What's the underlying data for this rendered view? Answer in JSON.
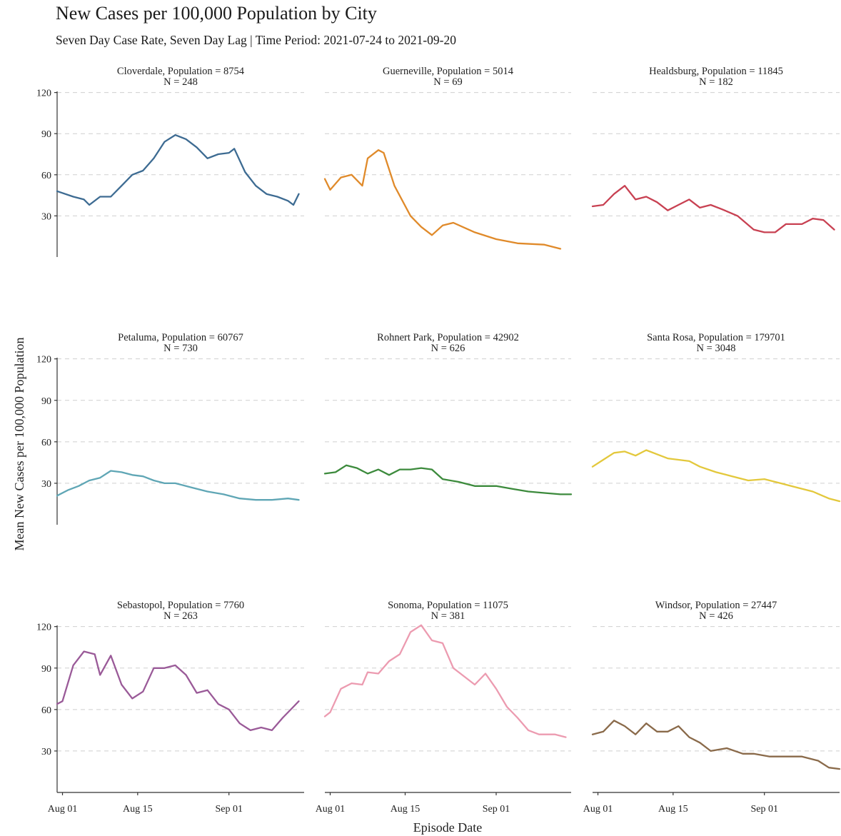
{
  "chart_data": {
    "type": "line",
    "title": "New Cases per 100,000 Population by City",
    "subtitle": "Seven Day Case Rate, Seven Day Lag | Time Period: 2021-07-24 to 2021-09-20",
    "xlabel": "Episode Date",
    "ylabel": "Mean New Cases per 100,000 Population",
    "xlim": [
      "2021-07-31",
      "2021-09-15"
    ],
    "ylim": [
      0,
      125
    ],
    "yticks": [
      30,
      60,
      90,
      120
    ],
    "xticks": [
      {
        "date": "2021-08-01",
        "label": "Aug 01"
      },
      {
        "date": "2021-08-15",
        "label": "Aug 15"
      },
      {
        "date": "2021-09-01",
        "label": "Sep 01"
      }
    ],
    "grid": true,
    "legend": "none",
    "panels": [
      {
        "title": "Cloverdale, Population = 8754",
        "n_label": "N = 248",
        "color": "#3d6b92",
        "x": [
          "2021-07-31",
          "2021-08-03",
          "2021-08-05",
          "2021-08-06",
          "2021-08-08",
          "2021-08-10",
          "2021-08-12",
          "2021-08-14",
          "2021-08-16",
          "2021-08-18",
          "2021-08-20",
          "2021-08-22",
          "2021-08-24",
          "2021-08-26",
          "2021-08-28",
          "2021-08-30",
          "2021-09-01",
          "2021-09-02",
          "2021-09-04",
          "2021-09-06",
          "2021-09-08",
          "2021-09-10",
          "2021-09-12",
          "2021-09-13",
          "2021-09-14"
        ],
        "values": [
          48,
          44,
          42,
          38,
          44,
          44,
          52,
          60,
          63,
          72,
          84,
          89,
          86,
          80,
          72,
          75,
          76,
          79,
          62,
          52,
          46,
          44,
          41,
          38,
          46
        ]
      },
      {
        "title": "Guerneville, Population = 5014",
        "n_label": "N = 69",
        "color": "#e08a2a",
        "x": [
          "2021-07-31",
          "2021-08-01",
          "2021-08-03",
          "2021-08-05",
          "2021-08-07",
          "2021-08-08",
          "2021-08-10",
          "2021-08-11",
          "2021-08-13",
          "2021-08-16",
          "2021-08-18",
          "2021-08-20",
          "2021-08-22",
          "2021-08-24",
          "2021-08-28",
          "2021-09-01",
          "2021-09-05",
          "2021-09-10",
          "2021-09-13"
        ],
        "values": [
          57,
          49,
          58,
          60,
          52,
          72,
          78,
          76,
          52,
          30,
          22,
          16,
          23,
          25,
          18,
          13,
          10,
          9,
          6
        ]
      },
      {
        "title": "Healdsburg, Population = 11845",
        "n_label": "N = 182",
        "color": "#c84152",
        "x": [
          "2021-07-31",
          "2021-08-02",
          "2021-08-04",
          "2021-08-06",
          "2021-08-08",
          "2021-08-10",
          "2021-08-12",
          "2021-08-14",
          "2021-08-16",
          "2021-08-18",
          "2021-08-20",
          "2021-08-22",
          "2021-08-24",
          "2021-08-27",
          "2021-08-30",
          "2021-09-01",
          "2021-09-03",
          "2021-09-05",
          "2021-09-08",
          "2021-09-10",
          "2021-09-12",
          "2021-09-14"
        ],
        "values": [
          37,
          38,
          46,
          52,
          42,
          44,
          40,
          34,
          38,
          42,
          36,
          38,
          35,
          30,
          20,
          18,
          18,
          24,
          24,
          28,
          27,
          20
        ]
      },
      {
        "title": "Petaluma, Population = 60767",
        "n_label": "N = 730",
        "color": "#5fa6b5",
        "x": [
          "2021-07-31",
          "2021-08-02",
          "2021-08-04",
          "2021-08-06",
          "2021-08-08",
          "2021-08-10",
          "2021-08-12",
          "2021-08-14",
          "2021-08-16",
          "2021-08-18",
          "2021-08-20",
          "2021-08-22",
          "2021-08-25",
          "2021-08-28",
          "2021-08-31",
          "2021-09-03",
          "2021-09-06",
          "2021-09-09",
          "2021-09-12",
          "2021-09-14"
        ],
        "values": [
          21,
          25,
          28,
          32,
          34,
          39,
          38,
          36,
          35,
          32,
          30,
          30,
          27,
          24,
          22,
          19,
          18,
          18,
          19,
          18
        ]
      },
      {
        "title": "Rohnert Park, Population = 42902",
        "n_label": "N = 626",
        "color": "#3c8a3c",
        "x": [
          "2021-07-31",
          "2021-08-02",
          "2021-08-04",
          "2021-08-06",
          "2021-08-08",
          "2021-08-10",
          "2021-08-12",
          "2021-08-14",
          "2021-08-16",
          "2021-08-18",
          "2021-08-20",
          "2021-08-22",
          "2021-08-25",
          "2021-08-28",
          "2021-09-01",
          "2021-09-04",
          "2021-09-07",
          "2021-09-10",
          "2021-09-13",
          "2021-09-15"
        ],
        "values": [
          37,
          38,
          43,
          41,
          37,
          40,
          36,
          40,
          40,
          41,
          40,
          33,
          31,
          28,
          28,
          26,
          24,
          23,
          22,
          22
        ]
      },
      {
        "title": "Santa Rosa, Population = 179701",
        "n_label": "N = 3048",
        "color": "#e3c83c",
        "x": [
          "2021-07-31",
          "2021-08-02",
          "2021-08-04",
          "2021-08-06",
          "2021-08-08",
          "2021-08-10",
          "2021-08-12",
          "2021-08-14",
          "2021-08-16",
          "2021-08-18",
          "2021-08-20",
          "2021-08-23",
          "2021-08-26",
          "2021-08-29",
          "2021-09-01",
          "2021-09-04",
          "2021-09-07",
          "2021-09-10",
          "2021-09-13",
          "2021-09-15"
        ],
        "values": [
          42,
          47,
          52,
          53,
          50,
          54,
          51,
          48,
          47,
          46,
          42,
          38,
          35,
          32,
          33,
          30,
          27,
          24,
          19,
          17
        ]
      },
      {
        "title": "Sebastopol, Population = 7760",
        "n_label": "N = 263",
        "color": "#9a5a98",
        "x": [
          "2021-07-31",
          "2021-08-01",
          "2021-08-03",
          "2021-08-05",
          "2021-08-07",
          "2021-08-08",
          "2021-08-10",
          "2021-08-12",
          "2021-08-14",
          "2021-08-16",
          "2021-08-18",
          "2021-08-20",
          "2021-08-22",
          "2021-08-24",
          "2021-08-26",
          "2021-08-28",
          "2021-08-30",
          "2021-09-01",
          "2021-09-03",
          "2021-09-05",
          "2021-09-07",
          "2021-09-09",
          "2021-09-11",
          "2021-09-13",
          "2021-09-14"
        ],
        "values": [
          64,
          66,
          92,
          102,
          100,
          85,
          99,
          78,
          68,
          73,
          90,
          90,
          92,
          85,
          72,
          74,
          64,
          60,
          50,
          45,
          47,
          45,
          54,
          62,
          66
        ]
      },
      {
        "title": "Sonoma, Population = 11075",
        "n_label": "N = 381",
        "color": "#ec9bb0",
        "x": [
          "2021-07-31",
          "2021-08-01",
          "2021-08-03",
          "2021-08-05",
          "2021-08-07",
          "2021-08-08",
          "2021-08-10",
          "2021-08-12",
          "2021-08-14",
          "2021-08-16",
          "2021-08-18",
          "2021-08-20",
          "2021-08-22",
          "2021-08-24",
          "2021-08-26",
          "2021-08-28",
          "2021-08-30",
          "2021-09-01",
          "2021-09-03",
          "2021-09-05",
          "2021-09-07",
          "2021-09-09",
          "2021-09-12",
          "2021-09-14"
        ],
        "values": [
          55,
          58,
          75,
          79,
          78,
          87,
          86,
          95,
          100,
          116,
          121,
          110,
          108,
          90,
          84,
          78,
          86,
          75,
          62,
          54,
          45,
          42,
          42,
          40
        ]
      },
      {
        "title": "Windsor, Population = 27447",
        "n_label": "N = 426",
        "color": "#8a6a4a",
        "x": [
          "2021-07-31",
          "2021-08-02",
          "2021-08-04",
          "2021-08-06",
          "2021-08-08",
          "2021-08-10",
          "2021-08-12",
          "2021-08-14",
          "2021-08-16",
          "2021-08-18",
          "2021-08-20",
          "2021-08-22",
          "2021-08-25",
          "2021-08-28",
          "2021-08-30",
          "2021-09-02",
          "2021-09-05",
          "2021-09-08",
          "2021-09-11",
          "2021-09-13",
          "2021-09-15"
        ],
        "values": [
          42,
          44,
          52,
          48,
          42,
          50,
          44,
          44,
          48,
          40,
          36,
          30,
          32,
          28,
          28,
          26,
          26,
          26,
          23,
          18,
          17
        ]
      }
    ]
  }
}
